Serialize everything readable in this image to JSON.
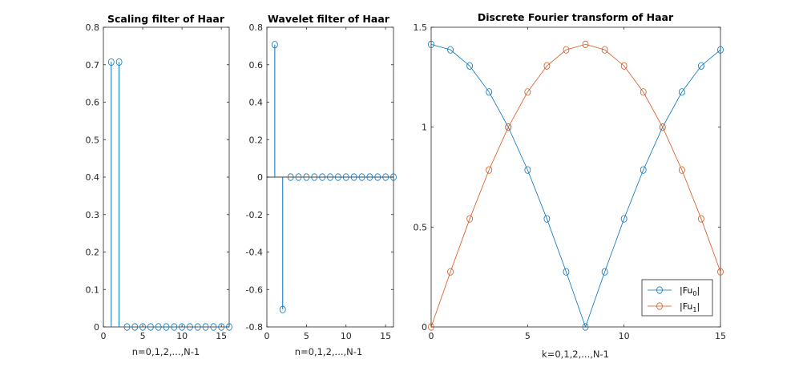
{
  "chart_data": [
    {
      "type": "stem",
      "title": "Scaling filter of Haar",
      "xlabel": "n=0,1,2,...,N-1",
      "ylabel": "",
      "xlim": [
        0,
        16
      ],
      "ylim": [
        0,
        0.8
      ],
      "xticks": [
        0,
        5,
        10,
        15
      ],
      "yticks": [
        0,
        0.1,
        0.2,
        0.3,
        0.4,
        0.5,
        0.6,
        0.7,
        0.8
      ],
      "xtick_labels": [
        "0",
        "5",
        "10",
        "15"
      ],
      "ytick_labels": [
        "0",
        "0.1",
        "0.2",
        "0.3",
        "0.4",
        "0.5",
        "0.6",
        "0.7",
        "0.8"
      ],
      "color": "#0072BD",
      "x": [
        1,
        2,
        3,
        4,
        5,
        6,
        7,
        8,
        9,
        10,
        11,
        12,
        13,
        14,
        15,
        16
      ],
      "y": [
        0.7071,
        0.7071,
        0,
        0,
        0,
        0,
        0,
        0,
        0,
        0,
        0,
        0,
        0,
        0,
        0,
        0
      ]
    },
    {
      "type": "stem",
      "title": "Wavelet filter of Haar",
      "xlabel": "n=0,1,2,...,N-1",
      "ylabel": "",
      "xlim": [
        0,
        16
      ],
      "ylim": [
        -0.8,
        0.8
      ],
      "xticks": [
        0,
        5,
        10,
        15
      ],
      "yticks": [
        -0.8,
        -0.6,
        -0.4,
        -0.2,
        0,
        0.2,
        0.4,
        0.6,
        0.8
      ],
      "xtick_labels": [
        "0",
        "5",
        "10",
        "15"
      ],
      "ytick_labels": [
        "-0.8",
        "-0.6",
        "-0.4",
        "-0.2",
        "0",
        "0.2",
        "0.4",
        "0.6",
        "0.8"
      ],
      "color": "#0072BD",
      "x": [
        1,
        2,
        3,
        4,
        5,
        6,
        7,
        8,
        9,
        10,
        11,
        12,
        13,
        14,
        15,
        16
      ],
      "y": [
        0.7071,
        -0.7071,
        0,
        0,
        0,
        0,
        0,
        0,
        0,
        0,
        0,
        0,
        0,
        0,
        0,
        0
      ]
    },
    {
      "type": "line",
      "title": "Discrete Fourier transform of Haar",
      "xlabel": "k=0,1,2,...,N-1",
      "ylabel": "",
      "xlim": [
        0,
        15
      ],
      "ylim": [
        0,
        1.5
      ],
      "xticks": [
        0,
        5,
        10,
        15
      ],
      "yticks": [
        0,
        0.5,
        1,
        1.5
      ],
      "xtick_labels": [
        "0",
        "5",
        "10",
        "15"
      ],
      "ytick_labels": [
        "0",
        "0.5",
        "1",
        "1.5"
      ],
      "legend_position": "bottom-right",
      "x": [
        0,
        1,
        2,
        3,
        4,
        5,
        6,
        7,
        8,
        9,
        10,
        11,
        12,
        13,
        14,
        15
      ],
      "series": [
        {
          "legend_base": "|Fu",
          "legend_sub": "0",
          "legend_end": "|",
          "color": "#0072BD",
          "values": [
            1.4142,
            1.387,
            1.3066,
            1.1759,
            1.0,
            0.7857,
            0.5412,
            0.2759,
            0.0,
            0.2759,
            0.5412,
            0.7857,
            1.0,
            1.1759,
            1.3066,
            1.387
          ]
        },
        {
          "legend_base": "|Fu",
          "legend_sub": "1",
          "legend_end": "|",
          "color": "#D95319",
          "values": [
            0.0,
            0.2759,
            0.5412,
            0.7857,
            1.0,
            1.1759,
            1.3066,
            1.387,
            1.4142,
            1.387,
            1.3066,
            1.1759,
            1.0,
            0.7857,
            0.5412,
            0.2759
          ]
        }
      ]
    }
  ]
}
